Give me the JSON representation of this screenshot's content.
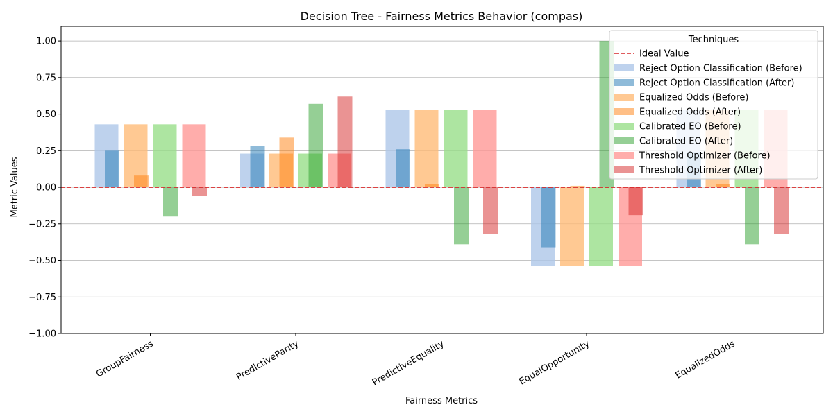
{
  "chart_data": {
    "type": "bar",
    "title": "Decision Tree - Fairness Metrics Behavior (compas)",
    "xlabel": "Fairness Metrics",
    "ylabel": "Metric Values",
    "ylim": [
      -1.0,
      1.1
    ],
    "yticks": [
      -1.0,
      -0.75,
      -0.5,
      -0.25,
      0.0,
      0.25,
      0.5,
      0.75,
      1.0
    ],
    "ytick_labels": [
      "−1.00",
      "−0.75",
      "−0.50",
      "−0.25",
      "0.00",
      "0.25",
      "0.50",
      "0.75",
      "1.00"
    ],
    "grid": "horizontal",
    "categories": [
      "GroupFairness",
      "PredictiveParity",
      "PredictiveEquality",
      "EqualOpportunity",
      "EqualizedOdds"
    ],
    "ideal_value": 0,
    "ideal_label": "Ideal Value",
    "ideal_color": "#d62728",
    "legend_title": "Techniques",
    "legend_position": "upper right",
    "series": [
      {
        "name": "Reject Option Classification (Before)",
        "color": "#aec7e8",
        "alpha": 0.8,
        "values": [
          0.43,
          0.23,
          0.53,
          -0.54,
          0.53
        ]
      },
      {
        "name": "Reject Option Classification (After)",
        "color": "#1f77b4",
        "alpha": 0.5,
        "values": [
          0.25,
          0.28,
          0.26,
          -0.41,
          0.24
        ]
      },
      {
        "name": "Equalized Odds (Before)",
        "color": "#ffbb78",
        "alpha": 0.8,
        "values": [
          0.43,
          0.23,
          0.53,
          -0.54,
          0.53
        ]
      },
      {
        "name": "Equalized Odds (After)",
        "color": "#ff7f0e",
        "alpha": 0.5,
        "values": [
          0.08,
          0.34,
          0.02,
          0.01,
          0.02
        ]
      },
      {
        "name": "Calibrated EO (Before)",
        "color": "#98df8a",
        "alpha": 0.8,
        "values": [
          0.43,
          0.23,
          0.53,
          -0.54,
          0.53
        ]
      },
      {
        "name": "Calibrated EO (After)",
        "color": "#2ca02c",
        "alpha": 0.5,
        "values": [
          -0.2,
          0.57,
          -0.39,
          1.0,
          -0.39
        ]
      },
      {
        "name": "Threshold Optimizer (Before)",
        "color": "#ff9896",
        "alpha": 0.8,
        "values": [
          0.43,
          0.23,
          0.53,
          -0.54,
          0.53
        ]
      },
      {
        "name": "Threshold Optimizer (After)",
        "color": "#d62728",
        "alpha": 0.5,
        "values": [
          -0.06,
          0.62,
          -0.32,
          -0.19,
          -0.32
        ]
      }
    ]
  }
}
